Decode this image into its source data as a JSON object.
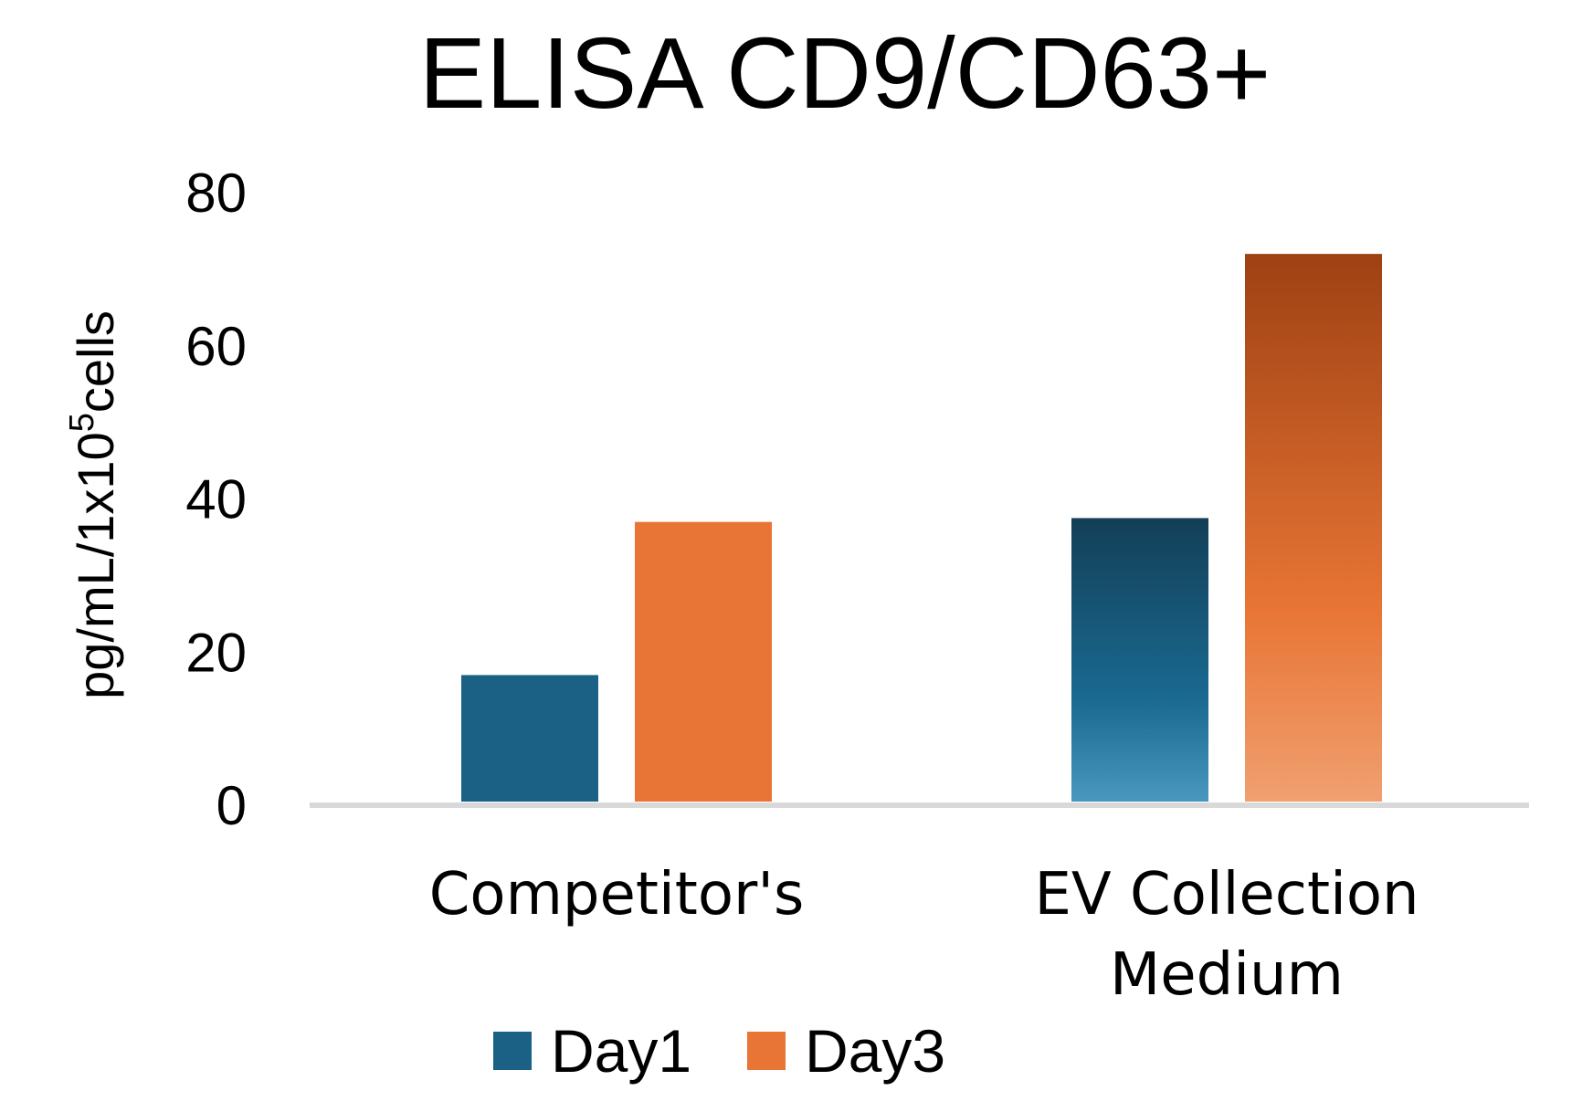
{
  "chart_data": {
    "type": "bar",
    "title": "ELISA CD9/CD63+",
    "xlabel": "",
    "ylabel": {
      "prefix": "pg/mL/1x10",
      "superscript": "5",
      "suffix": "cells"
    },
    "ylim": [
      0,
      80
    ],
    "yticks": [
      "0",
      "20",
      "40",
      "60",
      "80"
    ],
    "grid": false,
    "legend_position": "bottom",
    "categories": [
      {
        "line1": "Competitor's",
        "line2": ""
      },
      {
        "line1": "EV Collection",
        "line2": "Medium"
      }
    ],
    "series": [
      {
        "name": "Day1",
        "values": [
          17,
          37.5
        ],
        "color": "#1a6185",
        "color_dark": "#133f57",
        "color_light": "#4a98c0"
      },
      {
        "name": "Day3",
        "values": [
          37,
          72
        ],
        "color": "#e87535",
        "color_dark": "#9e4113",
        "color_light": "#f0a070"
      }
    ]
  }
}
